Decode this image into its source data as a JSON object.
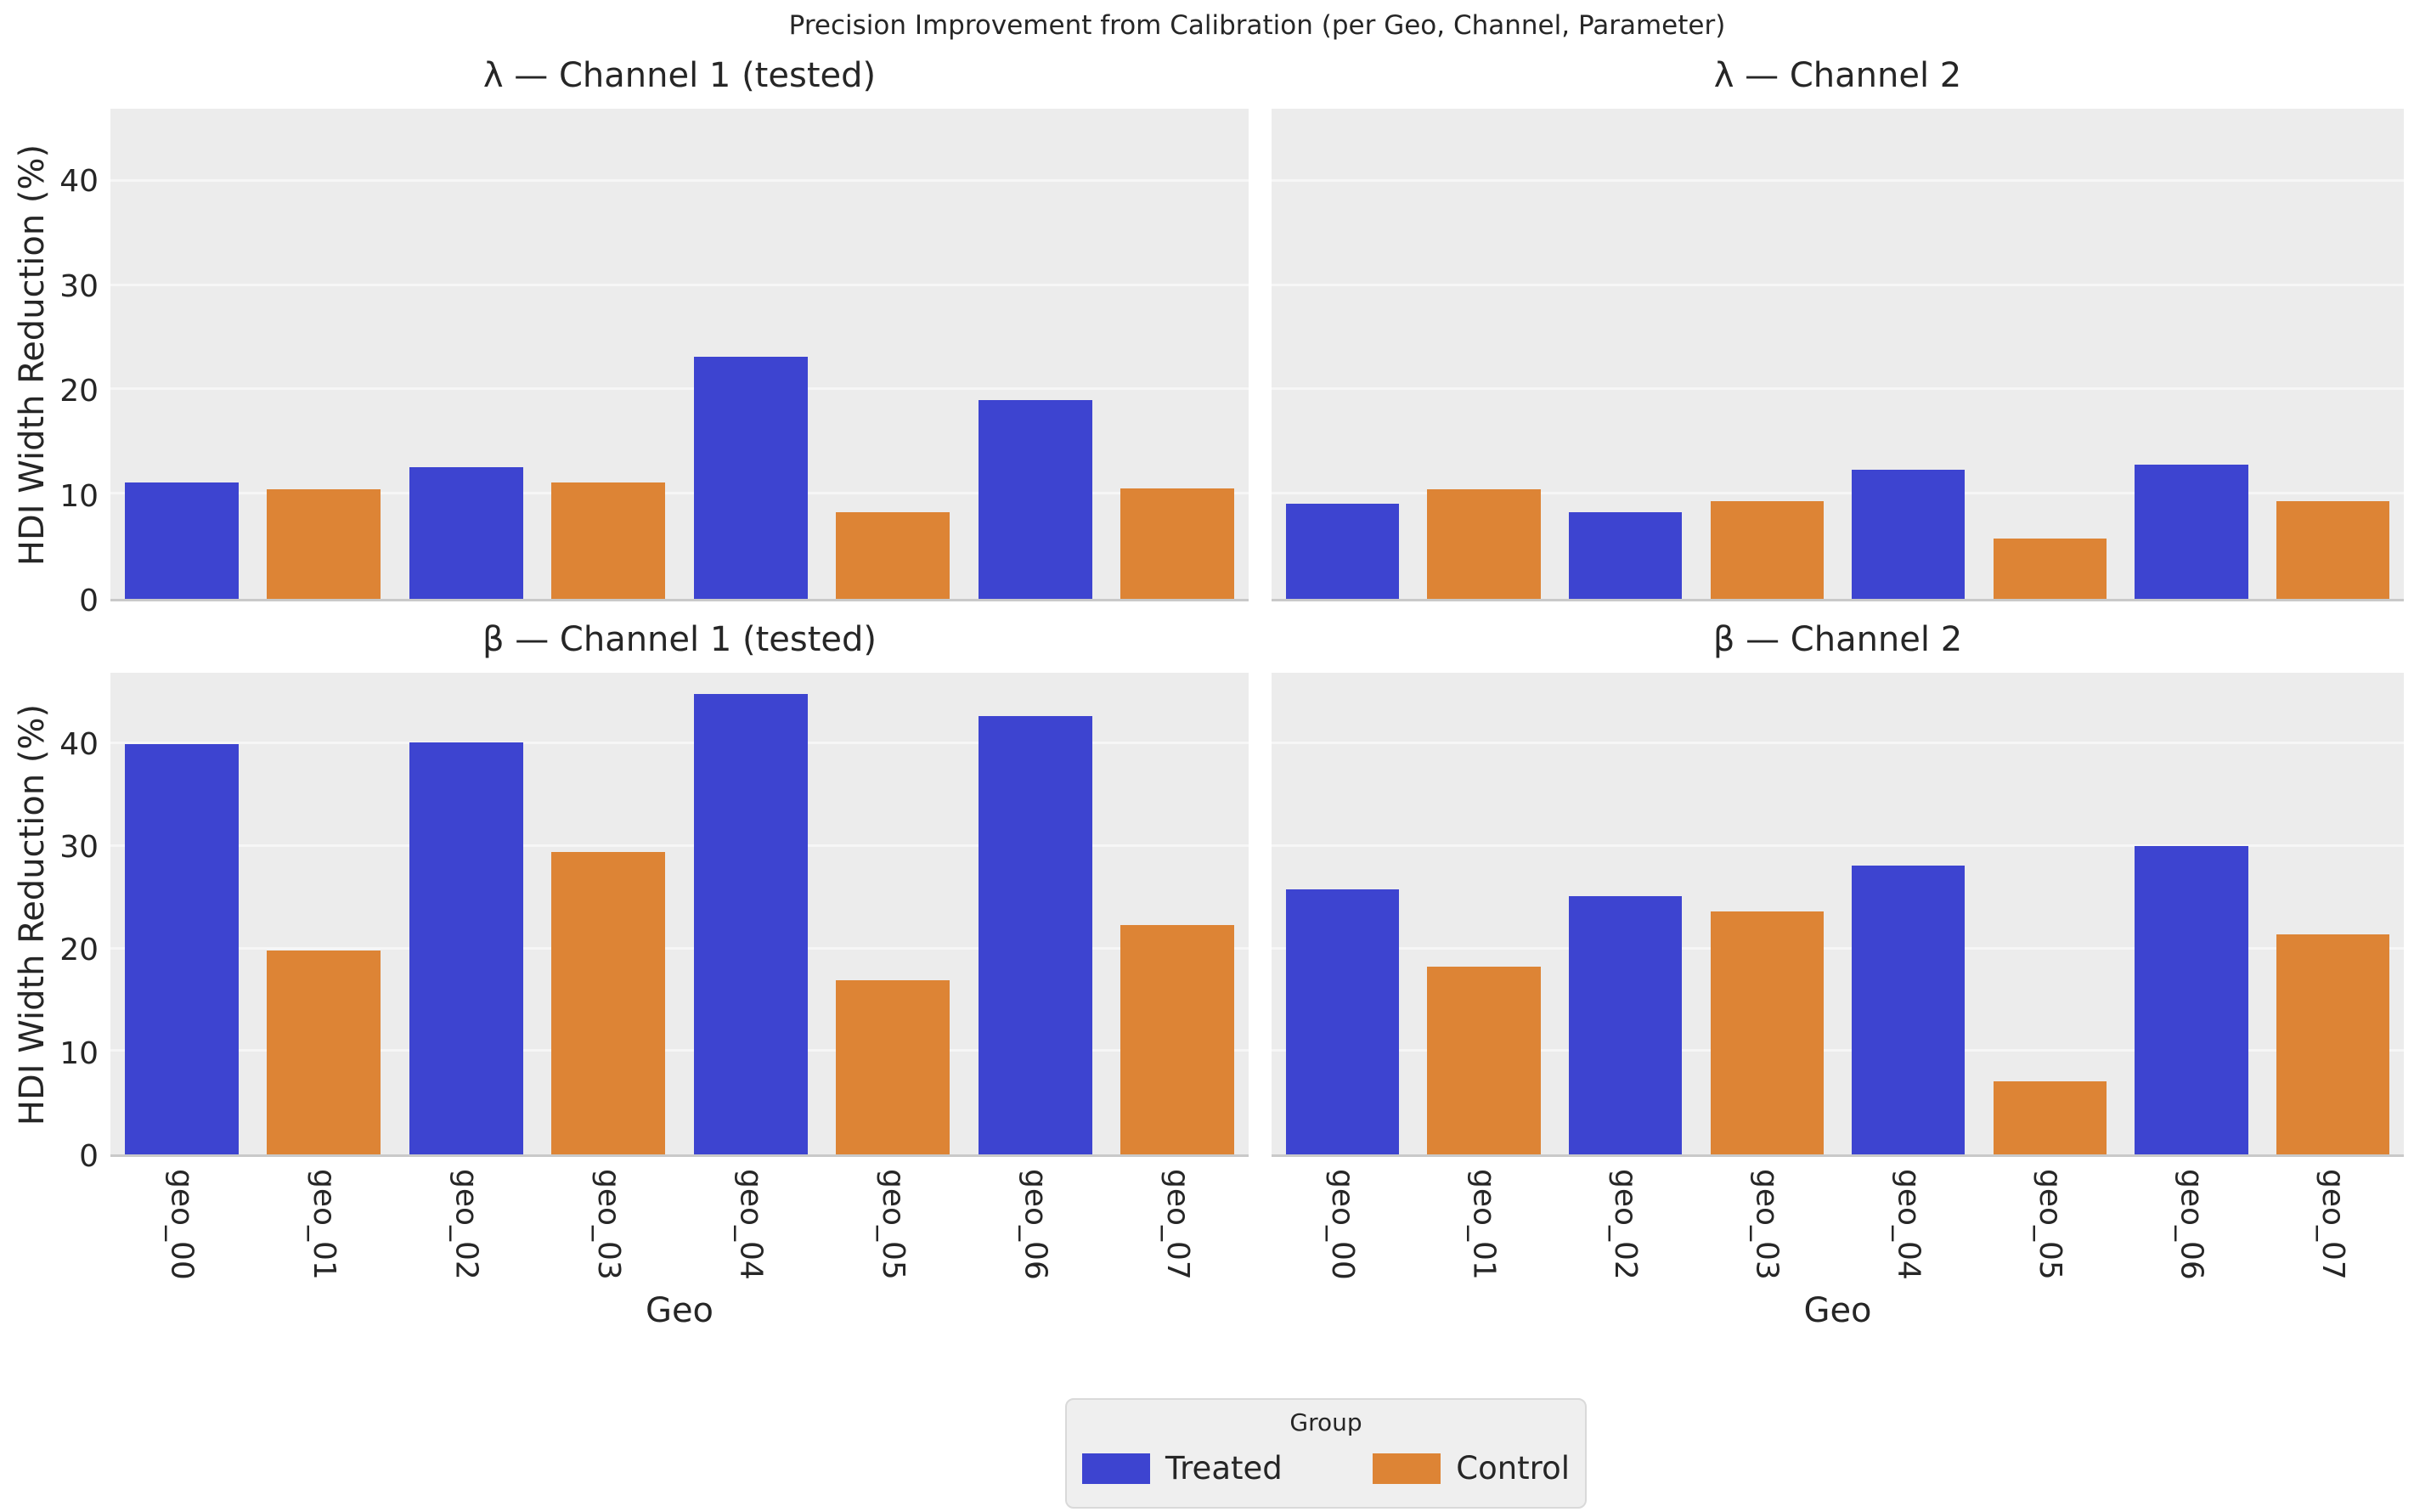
{
  "figure": {
    "title": "Precision Improvement from Calibration (per Geo, Channel, Parameter)"
  },
  "axes": {
    "ylabel": "HDI Width Reduction (%)",
    "xlabel": "Geo",
    "yticks": [
      0,
      10,
      20,
      30,
      40
    ],
    "ylim": [
      0,
      47
    ],
    "categories": [
      "geo_00",
      "geo_01",
      "geo_02",
      "geo_03",
      "geo_04",
      "geo_05",
      "geo_06",
      "geo_07"
    ],
    "grid": "horizontal-only"
  },
  "colors": {
    "treated": "#3d44d0",
    "control": "#dd8435",
    "plot_bg": "#ececec",
    "gridline": "#f6f6f6",
    "text": "#262626",
    "figure_bg": "#ffffff"
  },
  "legend": {
    "title": "Group",
    "position": "bottom-center",
    "items": [
      {
        "label": "Treated",
        "color": "#3d44d0"
      },
      {
        "label": "Control",
        "color": "#dd8435"
      }
    ]
  },
  "chart_data": [
    {
      "type": "bar",
      "title": "λ — Channel 1 (tested)",
      "categories": [
        "geo_00",
        "geo_01",
        "geo_02",
        "geo_03",
        "geo_04",
        "geo_05",
        "geo_06",
        "geo_07"
      ],
      "groups": [
        "Treated",
        "Control",
        "Treated",
        "Control",
        "Treated",
        "Control",
        "Treated",
        "Control"
      ],
      "values": [
        11.2,
        10.5,
        12.6,
        11.2,
        23.2,
        8.3,
        19.1,
        10.6
      ],
      "ylabel": "HDI Width Reduction (%)",
      "ylim": [
        0,
        47
      ]
    },
    {
      "type": "bar",
      "title": "λ — Channel 2",
      "categories": [
        "geo_00",
        "geo_01",
        "geo_02",
        "geo_03",
        "geo_04",
        "geo_05",
        "geo_06",
        "geo_07"
      ],
      "groups": [
        "Treated",
        "Control",
        "Treated",
        "Control",
        "Treated",
        "Control",
        "Treated",
        "Control"
      ],
      "values": [
        9.1,
        10.5,
        8.3,
        9.4,
        12.4,
        5.8,
        12.9,
        9.4
      ],
      "ylabel": "HDI Width Reduction (%)",
      "ylim": [
        0,
        47
      ]
    },
    {
      "type": "bar",
      "title": "β — Channel 1 (tested)",
      "categories": [
        "geo_00",
        "geo_01",
        "geo_02",
        "geo_03",
        "geo_04",
        "geo_05",
        "geo_06",
        "geo_07"
      ],
      "groups": [
        "Treated",
        "Control",
        "Treated",
        "Control",
        "Treated",
        "Control",
        "Treated",
        "Control"
      ],
      "values": [
        40.0,
        19.9,
        40.2,
        29.5,
        44.9,
        17.0,
        42.8,
        22.4
      ],
      "xlabel": "Geo",
      "ylabel": "HDI Width Reduction (%)",
      "ylim": [
        0,
        47
      ]
    },
    {
      "type": "bar",
      "title": "β — Channel 2",
      "categories": [
        "geo_00",
        "geo_01",
        "geo_02",
        "geo_03",
        "geo_04",
        "geo_05",
        "geo_06",
        "geo_07"
      ],
      "groups": [
        "Treated",
        "Control",
        "Treated",
        "Control",
        "Treated",
        "Control",
        "Treated",
        "Control"
      ],
      "values": [
        25.9,
        18.3,
        25.2,
        23.7,
        28.2,
        7.1,
        30.1,
        21.5
      ],
      "xlabel": "Geo",
      "ylim": [
        0,
        47
      ]
    }
  ]
}
